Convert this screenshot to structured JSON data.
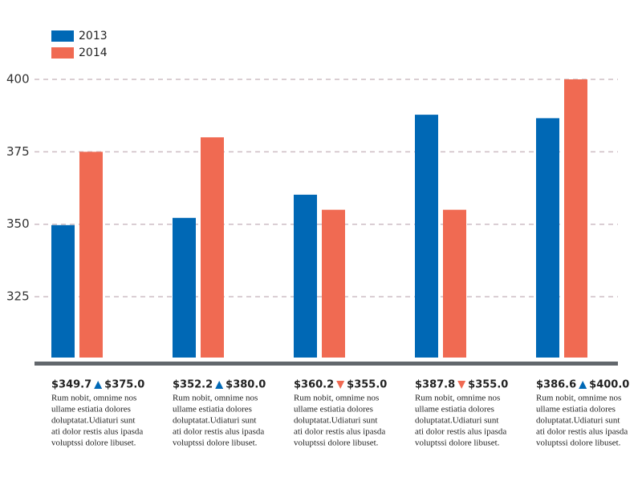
{
  "chart_data": {
    "type": "bar",
    "categories": [
      null,
      null,
      null,
      null,
      null
    ],
    "series": [
      {
        "name": "2013",
        "color": "#0068b5",
        "values": [
          349.7,
          352.2,
          360.2,
          387.8,
          386.6
        ],
        "value_labels": [
          "$349.7",
          "$352.2",
          "$360.2",
          "$387.8",
          "$386.6"
        ]
      },
      {
        "name": "2014",
        "color": "#f06a52",
        "values": [
          375.0,
          380.0,
          355.0,
          355.0,
          400.0
        ],
        "value_labels": [
          "$375.0",
          "$380.0",
          "$355.0",
          "$355.0",
          "$400.0"
        ]
      }
    ],
    "ylim": [
      304,
      400
    ],
    "yticks": [
      325,
      350,
      375,
      400
    ],
    "grid": true,
    "annotations": [
      [
        "Rum nobit, omnime nos",
        "ullame estiatia dolores",
        "doluptatat.Udiaturi sunt",
        "ati dolor restis alus ipasda",
        "voluptssi dolore libuset."
      ],
      [
        "Rum nobit, omnime nos",
        "ullame estiatia dolores",
        "doluptatat.Udiaturi sunt",
        "ati dolor restis alus ipasda",
        "voluptssi dolore libuset."
      ],
      [
        "Rum nobit, omnime nos",
        "ullame estiatia dolores",
        "doluptatat.Udiaturi sunt",
        "ati dolor restis alus ipasda",
        "voluptssi dolore libuset."
      ],
      [
        "Rum nobit, omnime nos",
        "ullame estiatia dolores",
        "doluptatat.Udiaturi sunt",
        "ati dolor restis alus ipasda",
        "voluptssi dolore libuset."
      ],
      [
        "Rum nobit, omnime nos",
        "ullame estiatia dolores",
        "doluptatat.Udiaturi sunt",
        "ati dolor restis alus ipasda",
        "voluptssi dolore libuset."
      ]
    ]
  }
}
